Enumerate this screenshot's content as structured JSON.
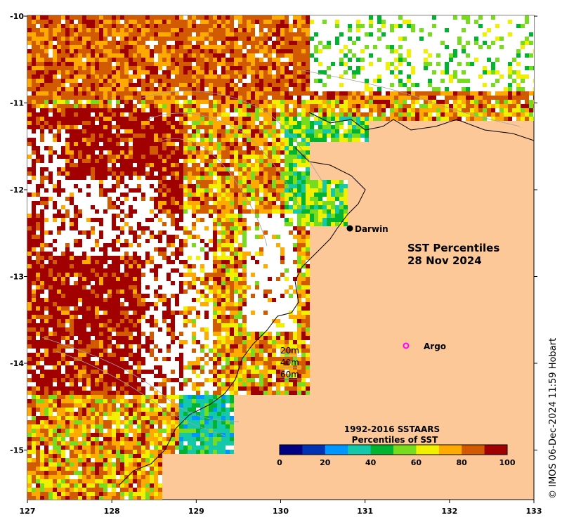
{
  "map": {
    "title_line1": "SST Percentiles",
    "title_line2": "28 Nov 2024",
    "x_ticks": [
      "127",
      "128",
      "129",
      "130",
      "131",
      "132",
      "133"
    ],
    "y_ticks": [
      "-10",
      "-11",
      "-12",
      "-13",
      "-14",
      "-15"
    ],
    "x_range": [
      127,
      133
    ],
    "y_range": [
      -15.6,
      -10
    ],
    "land_color": "#fdc898",
    "nodata_color": "#ffffff"
  },
  "places": {
    "darwin": {
      "label": "Darwin",
      "lon": 130.8,
      "lat": -12.45
    },
    "argo": {
      "label": "Argo",
      "lon": 131.5,
      "lat": -13.8
    }
  },
  "depth_legend": [
    "20m",
    "40m",
    "60m"
  ],
  "colorbar": {
    "title_line1": "1992-2016 SSTAARS",
    "title_line2": "Percentiles of SST",
    "ticks": [
      "0",
      "20",
      "40",
      "60",
      "80",
      "100"
    ],
    "colors": [
      "#000080",
      "#0032b4",
      "#0096ff",
      "#14c8aa",
      "#00b432",
      "#78dc1e",
      "#f0f000",
      "#ffaa00",
      "#d25a00",
      "#a00000"
    ]
  },
  "copyright": "© IMOS 06-Dec-2024 11:59 Hobart"
}
